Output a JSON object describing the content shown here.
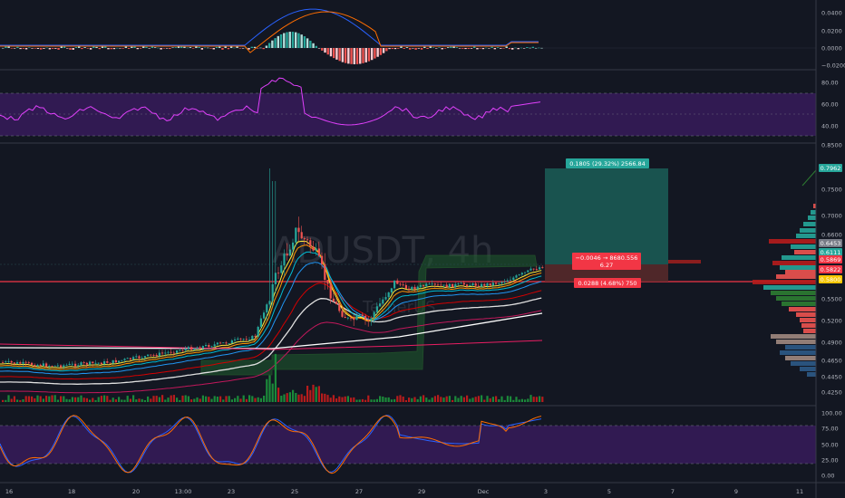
{
  "symbol_watermark": "ADUSDT, 4h",
  "exchange_watermark": "TetherUS",
  "position_tool": {
    "target_label": "0.1805 (29.32%) 2566.84",
    "entry_label_line1": "−0.0046 → 8680.556",
    "entry_label_line2": "6.27",
    "stop_label": "0.0288 (4.68%) 750"
  },
  "x_axis": {
    "labels": [
      "16",
      "18",
      "20",
      "13:00",
      "23",
      "25",
      "27",
      "29",
      "Dec",
      "3",
      "5",
      "7",
      "9",
      "11"
    ]
  },
  "macd_axis": [
    "0.0400",
    "0.0200",
    "0.0000",
    "−0.0200"
  ],
  "rsi_axis": [
    "80.00",
    "60.00",
    "40.00"
  ],
  "stoch_axis": [
    "100.00",
    "75.00",
    "50.00",
    "25.00",
    "0.00"
  ],
  "price_axis": {
    "labels": [
      "0.8500",
      "0.7500",
      "0.7000",
      "0.6600",
      "0.5500",
      "0.5200",
      "0.4900",
      "0.4650",
      "0.4450",
      "0.4250"
    ],
    "tags": [
      {
        "text": "0.7962",
        "color": "#26a69a"
      },
      {
        "text": "0.6453",
        "color": "#787b86"
      },
      {
        "text": "0.6111",
        "color": "#26a69a"
      },
      {
        "text": "0.5869",
        "color": "#f23645"
      },
      {
        "text": "0.5822",
        "color": "#f23645"
      },
      {
        "text": "0.5800",
        "color": "#f7c600"
      }
    ]
  },
  "colors": {
    "background": "#131722",
    "up": "#26a69a",
    "down": "#ef5350",
    "rsi_band": "#4a1e7a",
    "stoch_band": "#4a1e7a",
    "target_zone": "#1b5e57",
    "stop_zone": "#5b2a2a",
    "support_line": "#f23645"
  }
}
